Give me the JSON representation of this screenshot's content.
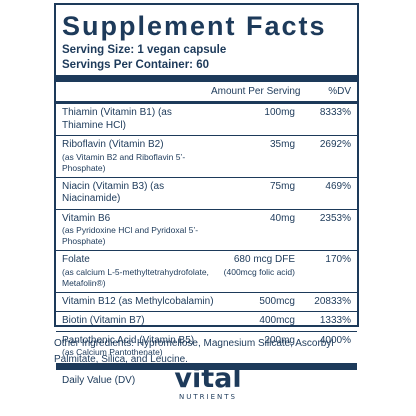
{
  "panel": {
    "title": "Supplement Facts",
    "serving_size": "Serving Size: 1 vegan capsule",
    "servings_per_container": "Servings Per Container: 60",
    "header": {
      "amount": "Amount Per Serving",
      "dv": "%DV"
    },
    "rows": [
      {
        "name": "Thiamin (Vitamin B1) (as Thiamine HCl)",
        "sub": "",
        "amount": "100mg",
        "amount_sub": "",
        "dv": "8333%"
      },
      {
        "name": "Riboflavin (Vitamin B2)",
        "sub": "(as Vitamin B2 and Riboflavin 5’-Phosphate)",
        "amount": "35mg",
        "amount_sub": "",
        "dv": "2692%"
      },
      {
        "name": "Niacin (Vitamin B3) (as Niacinamide)",
        "sub": "",
        "amount": "75mg",
        "amount_sub": "",
        "dv": "469%"
      },
      {
        "name": "Vitamin B6",
        "sub": "(as Pyridoxine HCl and Pyridoxal 5’-Phosphate)",
        "amount": "40mg",
        "amount_sub": "",
        "dv": "2353%"
      },
      {
        "name": "Folate",
        "sub": "(as calcium L-5-methyltetrahydrofolate, Metafolin®)",
        "amount": "680 mcg DFE",
        "amount_sub": "(400mcg folic acid)",
        "dv": "170%"
      },
      {
        "name": "Vitamin B12 (as Methylcobalamin)",
        "sub": "",
        "amount": "500mcg",
        "amount_sub": "",
        "dv": "20833%"
      },
      {
        "name": "Biotin (Vitamin B7)",
        "sub": "",
        "amount": "400mcg",
        "amount_sub": "",
        "dv": "1333%"
      },
      {
        "name": "Pantothenic Acid (Vitamin B5)",
        "sub": "(as Calcium Pantothenate)",
        "amount": "200mg",
        "amount_sub": "",
        "dv": "4000%"
      }
    ],
    "footnote": "Daily Value (DV)"
  },
  "other_ingredients": "Other Ingredients: Hypromellose, Magnesium Silicate, Ascorbyl Palmitate, Silica, and Leucine.",
  "logo": {
    "word": "vital",
    "sub": "NUTRIENTS"
  },
  "colors": {
    "ink": "#1d3a5a"
  }
}
